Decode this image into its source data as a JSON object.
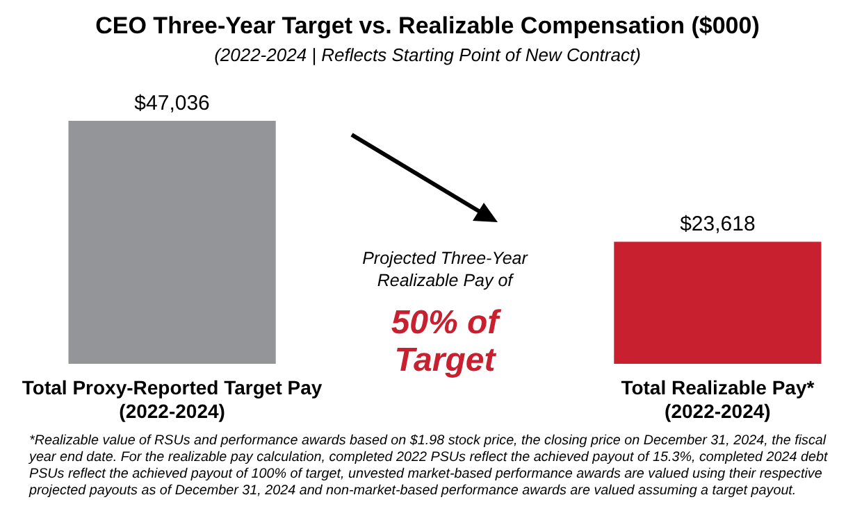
{
  "chart_data": {
    "type": "bar",
    "title": "CEO Three-Year Target vs. Realizable Compensation ($000)",
    "subtitle": "(2022-2024 | Reflects Starting Point of New Contract)",
    "categories": [
      "Total Proxy-Reported Target Pay\n(2022-2024)",
      "Total Realizable Pay*\n(2022-2024)"
    ],
    "values": [
      47036,
      23618
    ],
    "colors": [
      "#939598",
      "#c8202f"
    ],
    "value_labels": [
      "$47,036",
      "$23,618"
    ],
    "annotations": [
      "Projected Three-Year\nRealizable Pay of",
      "50% of\nTarget",
      "*Realizable value of RSUs and performance awards based on $1.98 stock price, the closing price on December 31, 2024, the fiscal\nyear end date. For the realizable pay calculation, completed 2022 PSUs reflect the achieved payout of 15.3%, completed 2024 debt\nPSUs reflect the achieved payout of 100% of target, unvested market-based performance awards are valued using their respective\nprojected payouts as of December 31, 2024 and non-market-based performance awards are valued assuming a target payout."
    ]
  }
}
